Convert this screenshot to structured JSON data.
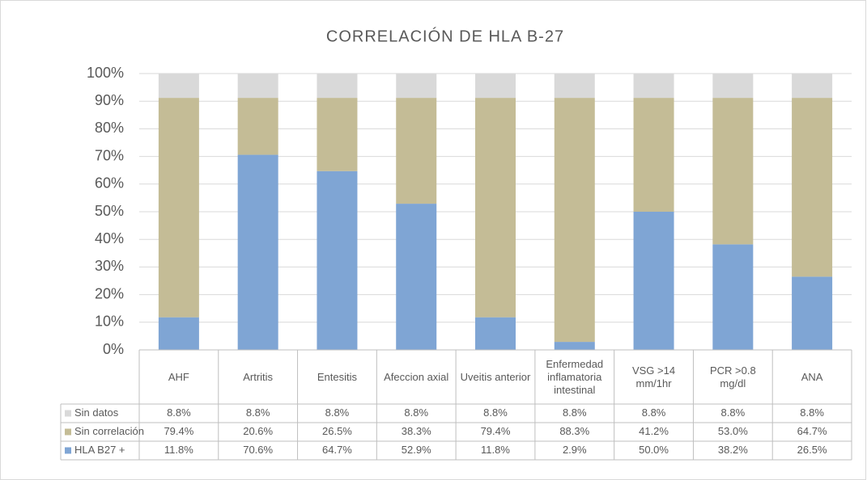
{
  "chart_data": {
    "type": "stacked_bar_100",
    "title": "CORRELACIÓN DE HLA B-27",
    "categories": [
      "AHF",
      "Artritis",
      "Entesitis",
      "Afeccion axial",
      "Uveitis anterior",
      "Enfermedad inflamatoria intestinal",
      "VSG >14 mm/1hr",
      "PCR >0.8 mg/dl",
      "ANA"
    ],
    "series": [
      {
        "name": "Sin datos",
        "color": "#d9d9d9",
        "values": [
          8.8,
          8.8,
          8.8,
          8.8,
          8.8,
          8.8,
          8.8,
          8.8,
          8.8
        ],
        "value_labels": [
          "8.8%",
          "8.8%",
          "8.8%",
          "8.8%",
          "8.8%",
          "8.8%",
          "8.8%",
          "8.8%",
          "8.8%"
        ]
      },
      {
        "name": "Sin correlación",
        "color": "#c4bc96",
        "values": [
          79.4,
          20.6,
          26.5,
          38.3,
          79.4,
          88.3,
          41.2,
          53.0,
          64.7
        ],
        "value_labels": [
          "79.4%",
          "20.6%",
          "26.5%",
          "38.3%",
          "79.4%",
          "88.3%",
          "41.2%",
          "53.0%",
          "64.7%"
        ]
      },
      {
        "name": "HLA B27 +",
        "color": "#7fa5d4",
        "values": [
          11.8,
          70.6,
          64.7,
          52.9,
          11.8,
          2.9,
          50.0,
          38.2,
          26.5
        ],
        "value_labels": [
          "11.8%",
          "70.6%",
          "64.7%",
          "52.9%",
          "11.8%",
          "2.9%",
          "50.0%",
          "38.2%",
          "26.5%"
        ]
      }
    ],
    "ylim": [
      0,
      100
    ],
    "yticks": [
      {
        "value": 0,
        "label": "0%"
      },
      {
        "value": 10,
        "label": "10%"
      },
      {
        "value": 20,
        "label": "20%"
      },
      {
        "value": 30,
        "label": "30%"
      },
      {
        "value": 40,
        "label": "40%"
      },
      {
        "value": 50,
        "label": "50%"
      },
      {
        "value": 60,
        "label": "60%"
      },
      {
        "value": 70,
        "label": "70%"
      },
      {
        "value": 80,
        "label": "80%"
      },
      {
        "value": 90,
        "label": "90%"
      },
      {
        "value": 100,
        "label": "100%"
      }
    ],
    "grid": true
  }
}
